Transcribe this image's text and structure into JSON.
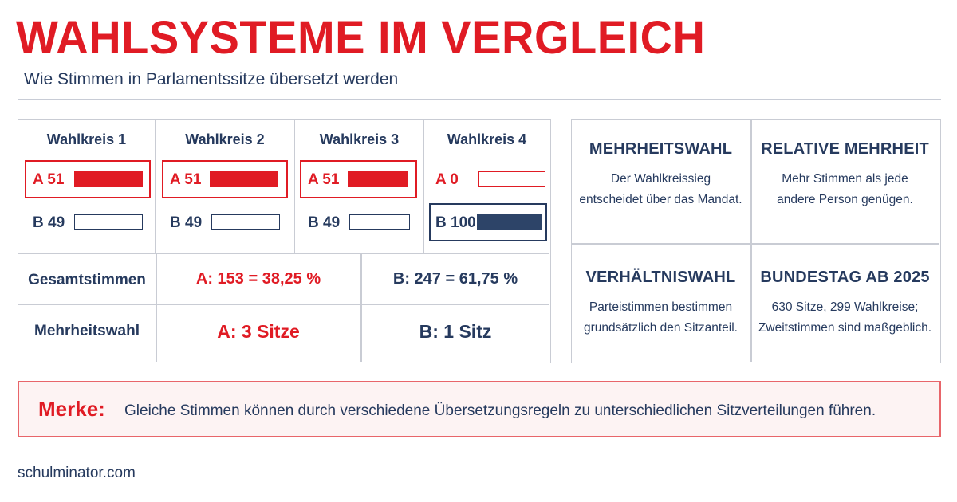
{
  "header": {
    "title": "WAHLSYSTEME IM VERGLEICH",
    "subtitle": "Wie Stimmen in Parlamentssitze übersetzt werden"
  },
  "districts": [
    {
      "label": "Wahlkreis 1",
      "a_label": "A 51",
      "b_label": "B 49",
      "a_share": 0.51,
      "b_share": 0.49,
      "winner": "A"
    },
    {
      "label": "Wahlkreis 2",
      "a_label": "A 51",
      "b_label": "B 49",
      "a_share": 0.51,
      "b_share": 0.49,
      "winner": "A"
    },
    {
      "label": "Wahlkreis 3",
      "a_label": "A 51",
      "b_label": "B 49",
      "a_share": 0.51,
      "b_share": 0.49,
      "winner": "A"
    },
    {
      "label": "Wahlkreis 4",
      "a_label": "A 0",
      "b_label": "B 100",
      "a_share": 0.0,
      "b_share": 1.0,
      "winner": "B"
    }
  ],
  "summary": {
    "total": {
      "label": "Gesamtstimmen",
      "a": "A: 153  = 38,25 %",
      "b": "B:  247  = 61,75 %"
    },
    "majority": {
      "label": "Mehrheitswahl",
      "a": "A: 3 Sitze",
      "b": "B: 1 Sitz"
    }
  },
  "info": [
    {
      "title": "MEHRHEITSWAHL",
      "text": "Der Wahlkreissieg\nentscheidet über das Mandat."
    },
    {
      "title": "RELATIVE MEHRHEIT",
      "text": "Mehr Stimmen als jede\nandere Person genügen."
    },
    {
      "title": "VERHÄLTNISWAHL",
      "text": "Parteistimmen bestimmen\ngrundsätzlich den Sitzanteil."
    },
    {
      "title": "BUNDESTAG AB 2025",
      "text": "630 Sitze, 299 Wahlkreise;\nZweitstimmen sind maßgeblich."
    }
  ],
  "merke": {
    "label": "Merke:",
    "text": "Gleiche Stimmen können durch verschiedene Übersetzungsregeln zu unterschiedlichen Sitzverteilungen führen."
  },
  "footer": {
    "source": "schulminator.com"
  },
  "colors": {
    "red": "#e01b24",
    "navy": "#263a5e",
    "grid": "#c9ccd4"
  }
}
